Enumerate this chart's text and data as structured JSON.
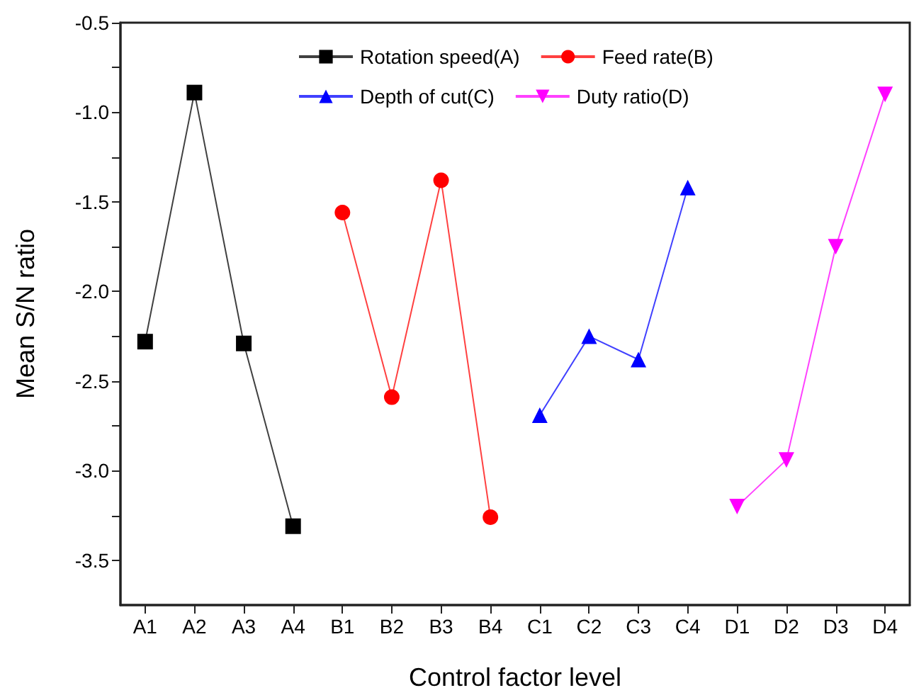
{
  "chart_data": {
    "type": "line",
    "xlabel": "Control factor level",
    "ylabel": "Mean S/N ratio",
    "categories": [
      "A1",
      "A2",
      "A3",
      "A4",
      "B1",
      "B2",
      "B3",
      "B4",
      "C1",
      "C2",
      "C3",
      "C4",
      "D1",
      "D2",
      "D3",
      "D4"
    ],
    "series": [
      {
        "name": "Rotation speed(A)",
        "color": "#000000",
        "marker": "square",
        "values": [
          -2.28,
          -0.89,
          -2.29,
          -3.31,
          null,
          null,
          null,
          null,
          null,
          null,
          null,
          null,
          null,
          null,
          null,
          null
        ]
      },
      {
        "name": "Feed rate(B)",
        "color": "#ff0000",
        "marker": "circle",
        "values": [
          null,
          null,
          null,
          null,
          -1.56,
          -2.59,
          -1.38,
          -3.26,
          null,
          null,
          null,
          null,
          null,
          null,
          null,
          null
        ]
      },
      {
        "name": "Depth of cut(C)",
        "color": "#0000ff",
        "marker": "triangle",
        "values": [
          null,
          null,
          null,
          null,
          null,
          null,
          null,
          null,
          -2.69,
          -2.25,
          -2.38,
          -1.42,
          null,
          null,
          null,
          null
        ]
      },
      {
        "name": "Duty ratio(D)",
        "color": "#ff00ff",
        "marker": "triangle-down",
        "values": [
          null,
          null,
          null,
          null,
          null,
          null,
          null,
          null,
          null,
          null,
          null,
          null,
          -3.2,
          -2.94,
          -1.75,
          -0.9
        ]
      }
    ],
    "ylim": [
      -3.75,
      -0.5
    ],
    "yticks": [
      -3.5,
      {
        "value": -3.25,
        "label": null
      },
      {
        "value": -3,
        "label": "-3.0"
      },
      {
        "value": -2.75,
        "label": null
      },
      -2.5,
      {
        "value": -2.25,
        "label": null
      },
      {
        "value": -2,
        "label": "-2.0"
      },
      {
        "value": -1.75,
        "label": null
      },
      -1.5,
      {
        "value": -1.25,
        "label": null
      },
      {
        "value": -1,
        "label": "-1.0"
      },
      {
        "value": -0.75,
        "label": null
      },
      -0.5
    ],
    "grid": false,
    "legend": "top",
    "line_style": "solid"
  }
}
